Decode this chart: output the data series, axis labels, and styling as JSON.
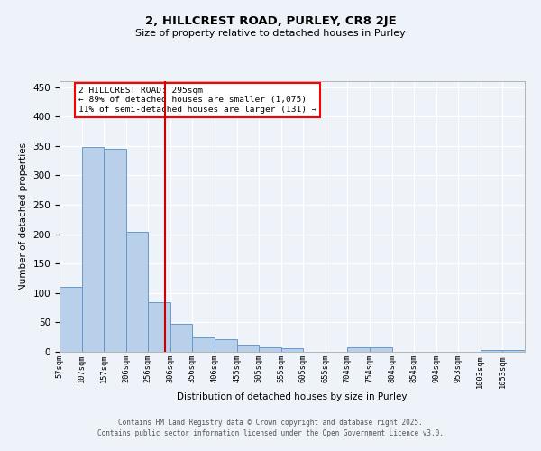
{
  "title_line1": "2, HILLCREST ROAD, PURLEY, CR8 2JE",
  "title_line2": "Size of property relative to detached houses in Purley",
  "xlabel": "Distribution of detached houses by size in Purley",
  "ylabel": "Number of detached properties",
  "bin_labels": [
    "57sqm",
    "107sqm",
    "157sqm",
    "206sqm",
    "256sqm",
    "306sqm",
    "356sqm",
    "406sqm",
    "455sqm",
    "505sqm",
    "555sqm",
    "605sqm",
    "655sqm",
    "704sqm",
    "754sqm",
    "804sqm",
    "854sqm",
    "904sqm",
    "953sqm",
    "1003sqm",
    "1053sqm"
  ],
  "bar_heights": [
    110,
    348,
    345,
    204,
    85,
    47,
    25,
    21,
    11,
    8,
    6,
    0,
    0,
    7,
    7,
    0,
    0,
    0,
    0,
    3,
    3
  ],
  "bar_color": "#b8d0ea",
  "bar_edge_color": "#6699cc",
  "vline_pos": 4.88,
  "vline_color": "#cc0000",
  "annotation_text": "2 HILLCREST ROAD: 295sqm\n← 89% of detached houses are smaller (1,075)\n11% of semi-detached houses are larger (131) →",
  "ylim": [
    0,
    460
  ],
  "yticks": [
    0,
    50,
    100,
    150,
    200,
    250,
    300,
    350,
    400,
    450
  ],
  "footer_line1": "Contains HM Land Registry data © Crown copyright and database right 2025.",
  "footer_line2": "Contains public sector information licensed under the Open Government Licence v3.0.",
  "background_color": "#eef2f9",
  "grid_color": "#ffffff"
}
